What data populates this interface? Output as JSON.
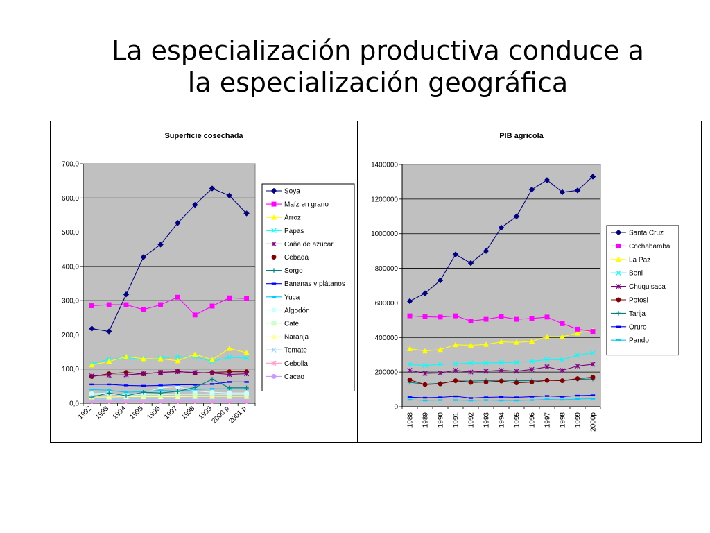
{
  "slide": {
    "title_line1": "La especialización productiva conduce a",
    "title_line2": "la especialización geográfica"
  },
  "chart_data": [
    {
      "type": "line",
      "title": "Superficie cosechada",
      "xlabel": "",
      "ylabel": "",
      "categories": [
        "1992",
        "1993",
        "1994",
        "1995",
        "1996",
        "1997",
        "1998",
        "1999",
        "2000 p",
        "2001 p"
      ],
      "ylim": [
        0,
        700
      ],
      "yticks": [
        "0,0",
        "100,0",
        "200,0",
        "300,0",
        "400,0",
        "500,0",
        "600,0",
        "700,0"
      ],
      "grid": true,
      "legend": "right",
      "series": [
        {
          "name": "Soya",
          "color": "#000080",
          "marker": "diamond",
          "values": [
            218,
            210,
            318,
            427,
            464,
            527,
            580,
            628,
            607,
            555
          ]
        },
        {
          "name": "Maíz en grano",
          "color": "#ff00ff",
          "marker": "square",
          "values": [
            285,
            288,
            288,
            274,
            288,
            310,
            258,
            284,
            308,
            306
          ]
        },
        {
          "name": "Arroz",
          "color": "#ffff00",
          "marker": "triangle",
          "values": [
            112,
            122,
            136,
            130,
            130,
            124,
            143,
            127,
            160,
            148
          ]
        },
        {
          "name": "Papas",
          "color": "#00ffff",
          "marker": "x",
          "values": [
            115,
            128,
            133,
            128,
            132,
            136,
            136,
            122,
            134,
            132
          ]
        },
        {
          "name": "Caña de azúcar",
          "color": "#800080",
          "marker": "star",
          "values": [
            80,
            82,
            83,
            86,
            90,
            92,
            90,
            88,
            84,
            86
          ]
        },
        {
          "name": "Cebada",
          "color": "#800000",
          "marker": "circle",
          "values": [
            78,
            86,
            90,
            86,
            90,
            93,
            88,
            90,
            92,
            92
          ]
        },
        {
          "name": "Sorgo",
          "color": "#008080",
          "marker": "plus",
          "values": [
            18,
            30,
            22,
            32,
            30,
            35,
            46,
            70,
            45,
            45
          ]
        },
        {
          "name": "Bananas y plátanos",
          "color": "#0000ff",
          "marker": "dash",
          "values": [
            55,
            55,
            52,
            51,
            52,
            54,
            54,
            56,
            62,
            62
          ]
        },
        {
          "name": "Yuca",
          "color": "#00ccff",
          "marker": "dash",
          "values": [
            40,
            38,
            32,
            34,
            38,
            35,
            40,
            42,
            42,
            42
          ]
        },
        {
          "name": "Algodón",
          "color": "#ccffff",
          "marker": "circle",
          "values": [
            28,
            30,
            20,
            30,
            45,
            48,
            36,
            32,
            30,
            30
          ]
        },
        {
          "name": "Café",
          "color": "#ccffcc",
          "marker": "square",
          "values": [
            26,
            26,
            25,
            25,
            25,
            26,
            26,
            26,
            26,
            26
          ]
        },
        {
          "name": "Naranja",
          "color": "#ffff99",
          "marker": "triangle",
          "values": [
            18,
            18,
            19,
            19,
            19,
            19,
            20,
            20,
            20,
            20
          ]
        },
        {
          "name": "Tomate",
          "color": "#99ccff",
          "marker": "x",
          "values": [
            12,
            12,
            13,
            13,
            13,
            13,
            13,
            14,
            14,
            14
          ]
        },
        {
          "name": "Cebolla",
          "color": "#ff99cc",
          "marker": "star",
          "values": [
            9,
            9,
            9,
            9,
            10,
            10,
            10,
            10,
            10,
            10
          ]
        },
        {
          "name": "Cacao",
          "color": "#cc99ff",
          "marker": "circle",
          "values": [
            6,
            6,
            6,
            6,
            6,
            6,
            6,
            6,
            6,
            6
          ]
        }
      ]
    },
    {
      "type": "line",
      "title": "PIB agricola",
      "xlabel": "",
      "ylabel": "",
      "categories": [
        "1988",
        "1989",
        "1990",
        "1991",
        "1992",
        "1993",
        "1994",
        "1995",
        "1996",
        "1997",
        "1998",
        "1999",
        "2000p"
      ],
      "ylim": [
        0,
        1400000
      ],
      "yticks": [
        "0",
        "200000",
        "400000",
        "600000",
        "800000",
        "1000000",
        "1200000",
        "1400000"
      ],
      "grid": true,
      "legend": "right",
      "series": [
        {
          "name": "Santa Cruz",
          "color": "#000080",
          "marker": "diamond",
          "values": [
            610000,
            655000,
            730000,
            880000,
            830000,
            900000,
            1035000,
            1100000,
            1255000,
            1310000,
            1240000,
            1250000,
            1330000
          ]
        },
        {
          "name": "Cochabamba",
          "color": "#ff00ff",
          "marker": "square",
          "values": [
            525000,
            520000,
            518000,
            525000,
            495000,
            505000,
            520000,
            505000,
            510000,
            518000,
            480000,
            448000,
            435000
          ]
        },
        {
          "name": "La Paz",
          "color": "#ffff00",
          "marker": "triangle",
          "values": [
            335000,
            322000,
            330000,
            358000,
            355000,
            360000,
            375000,
            372000,
            378000,
            405000,
            405000,
            425000,
            440000
          ]
        },
        {
          "name": "Beni",
          "color": "#00ffff",
          "marker": "x",
          "values": [
            245000,
            238000,
            245000,
            248000,
            252000,
            252000,
            255000,
            255000,
            262000,
            272000,
            270000,
            298000,
            310000
          ]
        },
        {
          "name": "Chuquisaca",
          "color": "#800080",
          "marker": "star",
          "values": [
            210000,
            192000,
            195000,
            210000,
            200000,
            205000,
            210000,
            205000,
            215000,
            230000,
            210000,
            235000,
            245000
          ]
        },
        {
          "name": "Potosi",
          "color": "#800000",
          "marker": "circle",
          "values": [
            155000,
            128000,
            132000,
            150000,
            140000,
            142000,
            148000,
            138000,
            142000,
            152000,
            150000,
            162000,
            170000
          ]
        },
        {
          "name": "Tarija",
          "color": "#008080",
          "marker": "plus",
          "values": [
            140000,
            130000,
            135000,
            148000,
            148000,
            150000,
            152000,
            150000,
            150000,
            155000,
            150000,
            158000,
            160000
          ]
        },
        {
          "name": "Oruro",
          "color": "#0000ff",
          "marker": "dash",
          "values": [
            55000,
            52000,
            54000,
            60000,
            50000,
            54000,
            56000,
            54000,
            58000,
            62000,
            58000,
            64000,
            66000
          ]
        },
        {
          "name": "Pando",
          "color": "#00ccff",
          "marker": "dash",
          "values": [
            40000,
            36000,
            38000,
            38000,
            36000,
            38000,
            36000,
            36000,
            38000,
            42000,
            40000,
            44000,
            46000
          ]
        }
      ]
    }
  ]
}
